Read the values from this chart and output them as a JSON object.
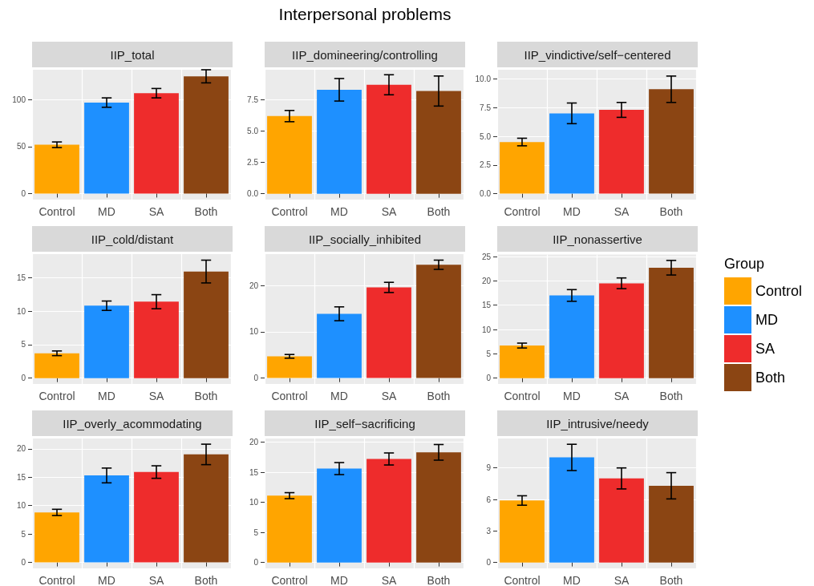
{
  "chart_data": [
    {
      "type": "other",
      "title": "Interpersonal problems"
    },
    {
      "type": "bar",
      "title": "IIP_total",
      "categories": [
        "Control",
        "MD",
        "SA",
        "Both"
      ],
      "stacked": true,
      "ylim": [
        -6.5,
        132
      ],
      "yticks": [
        0,
        50,
        100
      ],
      "grid": true,
      "series": [
        {
          "color": "#ffa500",
          "values": [
            52,
            null,
            null,
            null
          ],
          "errors": [
            3,
            null,
            null,
            null
          ]
        },
        {
          "color": "#1e90ff",
          "values": [
            null,
            97,
            null,
            null
          ],
          "errors": [
            null,
            5,
            null,
            null
          ]
        },
        {
          "color": "#ee2c2c",
          "values": [
            null,
            null,
            107,
            null
          ],
          "errors": [
            null,
            null,
            5,
            null
          ]
        },
        {
          "color": "#8b4513",
          "values": [
            null,
            null,
            null,
            125
          ],
          "errors": [
            null,
            null,
            null,
            7
          ]
        }
      ]
    },
    {
      "type": "bar",
      "title": "IIP_domineering/controlling",
      "categories": [
        "Control",
        "MD",
        "SA",
        "Both"
      ],
      "stacked": true,
      "ylim": [
        -0.47,
        9.9
      ],
      "yticks": [
        {
          "value": 0,
          "label": "0.0"
        },
        2.5,
        {
          "value": 5,
          "label": "5.0"
        },
        7.5
      ],
      "grid": true,
      "series": [
        {
          "color": "#ffa500",
          "values": [
            6.2,
            null,
            null,
            null
          ],
          "errors": [
            0.45,
            null,
            null,
            null
          ]
        },
        {
          "color": "#1e90ff",
          "values": [
            null,
            8.3,
            null,
            null
          ],
          "errors": [
            null,
            0.9,
            null,
            null
          ]
        },
        {
          "color": "#ee2c2c",
          "values": [
            null,
            null,
            8.7,
            null
          ],
          "errors": [
            null,
            null,
            0.8,
            null
          ]
        },
        {
          "color": "#8b4513",
          "values": [
            null,
            null,
            null,
            8.2
          ],
          "errors": [
            null,
            null,
            null,
            1.2
          ]
        }
      ]
    },
    {
      "type": "bar",
      "title": "IIP_vindictive/self−centered",
      "categories": [
        "Control",
        "MD",
        "SA",
        "Both"
      ],
      "stacked": true,
      "ylim": [
        -0.52,
        10.8
      ],
      "yticks": [
        {
          "value": 0,
          "label": "0.0"
        },
        2.5,
        {
          "value": 5,
          "label": "5.0"
        },
        7.5,
        {
          "value": 10,
          "label": "10.0"
        }
      ],
      "grid": true,
      "series": [
        {
          "color": "#ffa500",
          "values": [
            4.5,
            null,
            null,
            null
          ],
          "errors": [
            0.33,
            null,
            null,
            null
          ]
        },
        {
          "color": "#1e90ff",
          "values": [
            null,
            7.0,
            null,
            null
          ],
          "errors": [
            null,
            0.9,
            null,
            null
          ]
        },
        {
          "color": "#ee2c2c",
          "values": [
            null,
            null,
            7.3,
            null
          ],
          "errors": [
            null,
            null,
            0.65,
            null
          ]
        },
        {
          "color": "#8b4513",
          "values": [
            null,
            null,
            null,
            9.1
          ],
          "errors": [
            null,
            null,
            null,
            1.15
          ]
        }
      ]
    },
    {
      "type": "bar",
      "title": "IIP_cold/distant",
      "categories": [
        "Control",
        "MD",
        "SA",
        "Both"
      ],
      "stacked": true,
      "ylim": [
        -0.88,
        18.5
      ],
      "yticks": [
        0,
        5,
        10,
        15
      ],
      "grid": true,
      "series": [
        {
          "color": "#ffa500",
          "values": [
            3.7,
            null,
            null,
            null
          ],
          "errors": [
            0.35,
            null,
            null,
            null
          ]
        },
        {
          "color": "#1e90ff",
          "values": [
            null,
            10.8,
            null,
            null
          ],
          "errors": [
            null,
            0.7,
            null,
            null
          ]
        },
        {
          "color": "#ee2c2c",
          "values": [
            null,
            null,
            11.4,
            null
          ],
          "errors": [
            null,
            null,
            1.05,
            null
          ]
        },
        {
          "color": "#8b4513",
          "values": [
            null,
            null,
            null,
            15.9
          ],
          "errors": [
            null,
            null,
            null,
            1.7
          ]
        }
      ]
    },
    {
      "type": "bar",
      "title": "IIP_socially_inhibited",
      "categories": [
        "Control",
        "MD",
        "SA",
        "Both"
      ],
      "stacked": true,
      "ylim": [
        -1.28,
        26.8
      ],
      "yticks": [
        0,
        10,
        20
      ],
      "grid": true,
      "series": [
        {
          "color": "#ffa500",
          "values": [
            4.7,
            null,
            null,
            null
          ],
          "errors": [
            0.4,
            null,
            null,
            null
          ]
        },
        {
          "color": "#1e90ff",
          "values": [
            null,
            13.9,
            null,
            null
          ],
          "errors": [
            null,
            1.5,
            null,
            null
          ]
        },
        {
          "color": "#ee2c2c",
          "values": [
            null,
            null,
            19.6,
            null
          ],
          "errors": [
            null,
            null,
            1.1,
            null
          ]
        },
        {
          "color": "#8b4513",
          "values": [
            null,
            null,
            null,
            24.5
          ],
          "errors": [
            null,
            null,
            null,
            1.0
          ]
        }
      ]
    },
    {
      "type": "bar",
      "title": "IIP_nonassertive",
      "categories": [
        "Control",
        "MD",
        "SA",
        "Both"
      ],
      "stacked": true,
      "ylim": [
        -1.2,
        25.4
      ],
      "yticks": [
        0,
        5,
        10,
        15,
        20,
        25
      ],
      "grid": true,
      "legend": "right",
      "legend_title": "Group",
      "series": [
        {
          "name": "Control",
          "color": "#ffa500",
          "values": [
            6.7,
            null,
            null,
            null
          ],
          "errors": [
            0.5,
            null,
            null,
            null
          ]
        },
        {
          "name": "MD",
          "color": "#1e90ff",
          "values": [
            null,
            17.0,
            null,
            null
          ],
          "errors": [
            null,
            1.2,
            null,
            null
          ]
        },
        {
          "name": "SA",
          "color": "#ee2c2c",
          "values": [
            null,
            null,
            19.5,
            null
          ],
          "errors": [
            null,
            null,
            1.1,
            null
          ]
        },
        {
          "name": "Both",
          "color": "#8b4513",
          "values": [
            null,
            null,
            null,
            22.7
          ],
          "errors": [
            null,
            null,
            null,
            1.5
          ]
        }
      ]
    },
    {
      "type": "bar",
      "title": "IIP_overly_acommodating",
      "categories": [
        "Control",
        "MD",
        "SA",
        "Both"
      ],
      "stacked": true,
      "ylim": [
        -1.04,
        21.8
      ],
      "yticks": [
        0,
        5,
        10,
        15,
        20
      ],
      "grid": true,
      "series": [
        {
          "color": "#ffa500",
          "values": [
            8.8,
            null,
            null,
            null
          ],
          "errors": [
            0.55,
            null,
            null,
            null
          ]
        },
        {
          "color": "#1e90ff",
          "values": [
            null,
            15.3,
            null,
            null
          ],
          "errors": [
            null,
            1.3,
            null,
            null
          ]
        },
        {
          "color": "#ee2c2c",
          "values": [
            null,
            null,
            15.9,
            null
          ],
          "errors": [
            null,
            null,
            1.1,
            null
          ]
        },
        {
          "color": "#8b4513",
          "values": [
            null,
            null,
            null,
            19.0
          ],
          "errors": [
            null,
            null,
            null,
            1.8
          ]
        }
      ]
    },
    {
      "type": "bar",
      "title": "IIP_self−sacrificing",
      "categories": [
        "Control",
        "MD",
        "SA",
        "Both"
      ],
      "stacked": true,
      "ylim": [
        -0.98,
        20.6
      ],
      "yticks": [
        0,
        5,
        10,
        15,
        20
      ],
      "grid": true,
      "series": [
        {
          "color": "#ffa500",
          "values": [
            11.1,
            null,
            null,
            null
          ],
          "errors": [
            0.5,
            null,
            null,
            null
          ]
        },
        {
          "color": "#1e90ff",
          "values": [
            null,
            15.6,
            null,
            null
          ],
          "errors": [
            null,
            1.0,
            null,
            null
          ]
        },
        {
          "color": "#ee2c2c",
          "values": [
            null,
            null,
            17.2,
            null
          ],
          "errors": [
            null,
            null,
            1.0,
            null
          ]
        },
        {
          "color": "#8b4513",
          "values": [
            null,
            null,
            null,
            18.3
          ],
          "errors": [
            null,
            null,
            null,
            1.3
          ]
        }
      ]
    },
    {
      "type": "bar",
      "title": "IIP_intrusive/needy",
      "categories": [
        "Control",
        "MD",
        "SA",
        "Both"
      ],
      "stacked": true,
      "ylim": [
        -0.56,
        11.8
      ],
      "yticks": [
        0,
        3,
        6,
        9
      ],
      "grid": true,
      "series": [
        {
          "color": "#ffa500",
          "values": [
            5.9,
            null,
            null,
            null
          ],
          "errors": [
            0.45,
            null,
            null,
            null
          ]
        },
        {
          "color": "#1e90ff",
          "values": [
            null,
            10.0,
            null,
            null
          ],
          "errors": [
            null,
            1.25,
            null,
            null
          ]
        },
        {
          "color": "#ee2c2c",
          "values": [
            null,
            null,
            8.0,
            null
          ],
          "errors": [
            null,
            null,
            1.0,
            null
          ]
        },
        {
          "color": "#8b4513",
          "values": [
            null,
            null,
            null,
            7.3
          ],
          "errors": [
            null,
            null,
            null,
            1.25
          ]
        }
      ]
    }
  ]
}
